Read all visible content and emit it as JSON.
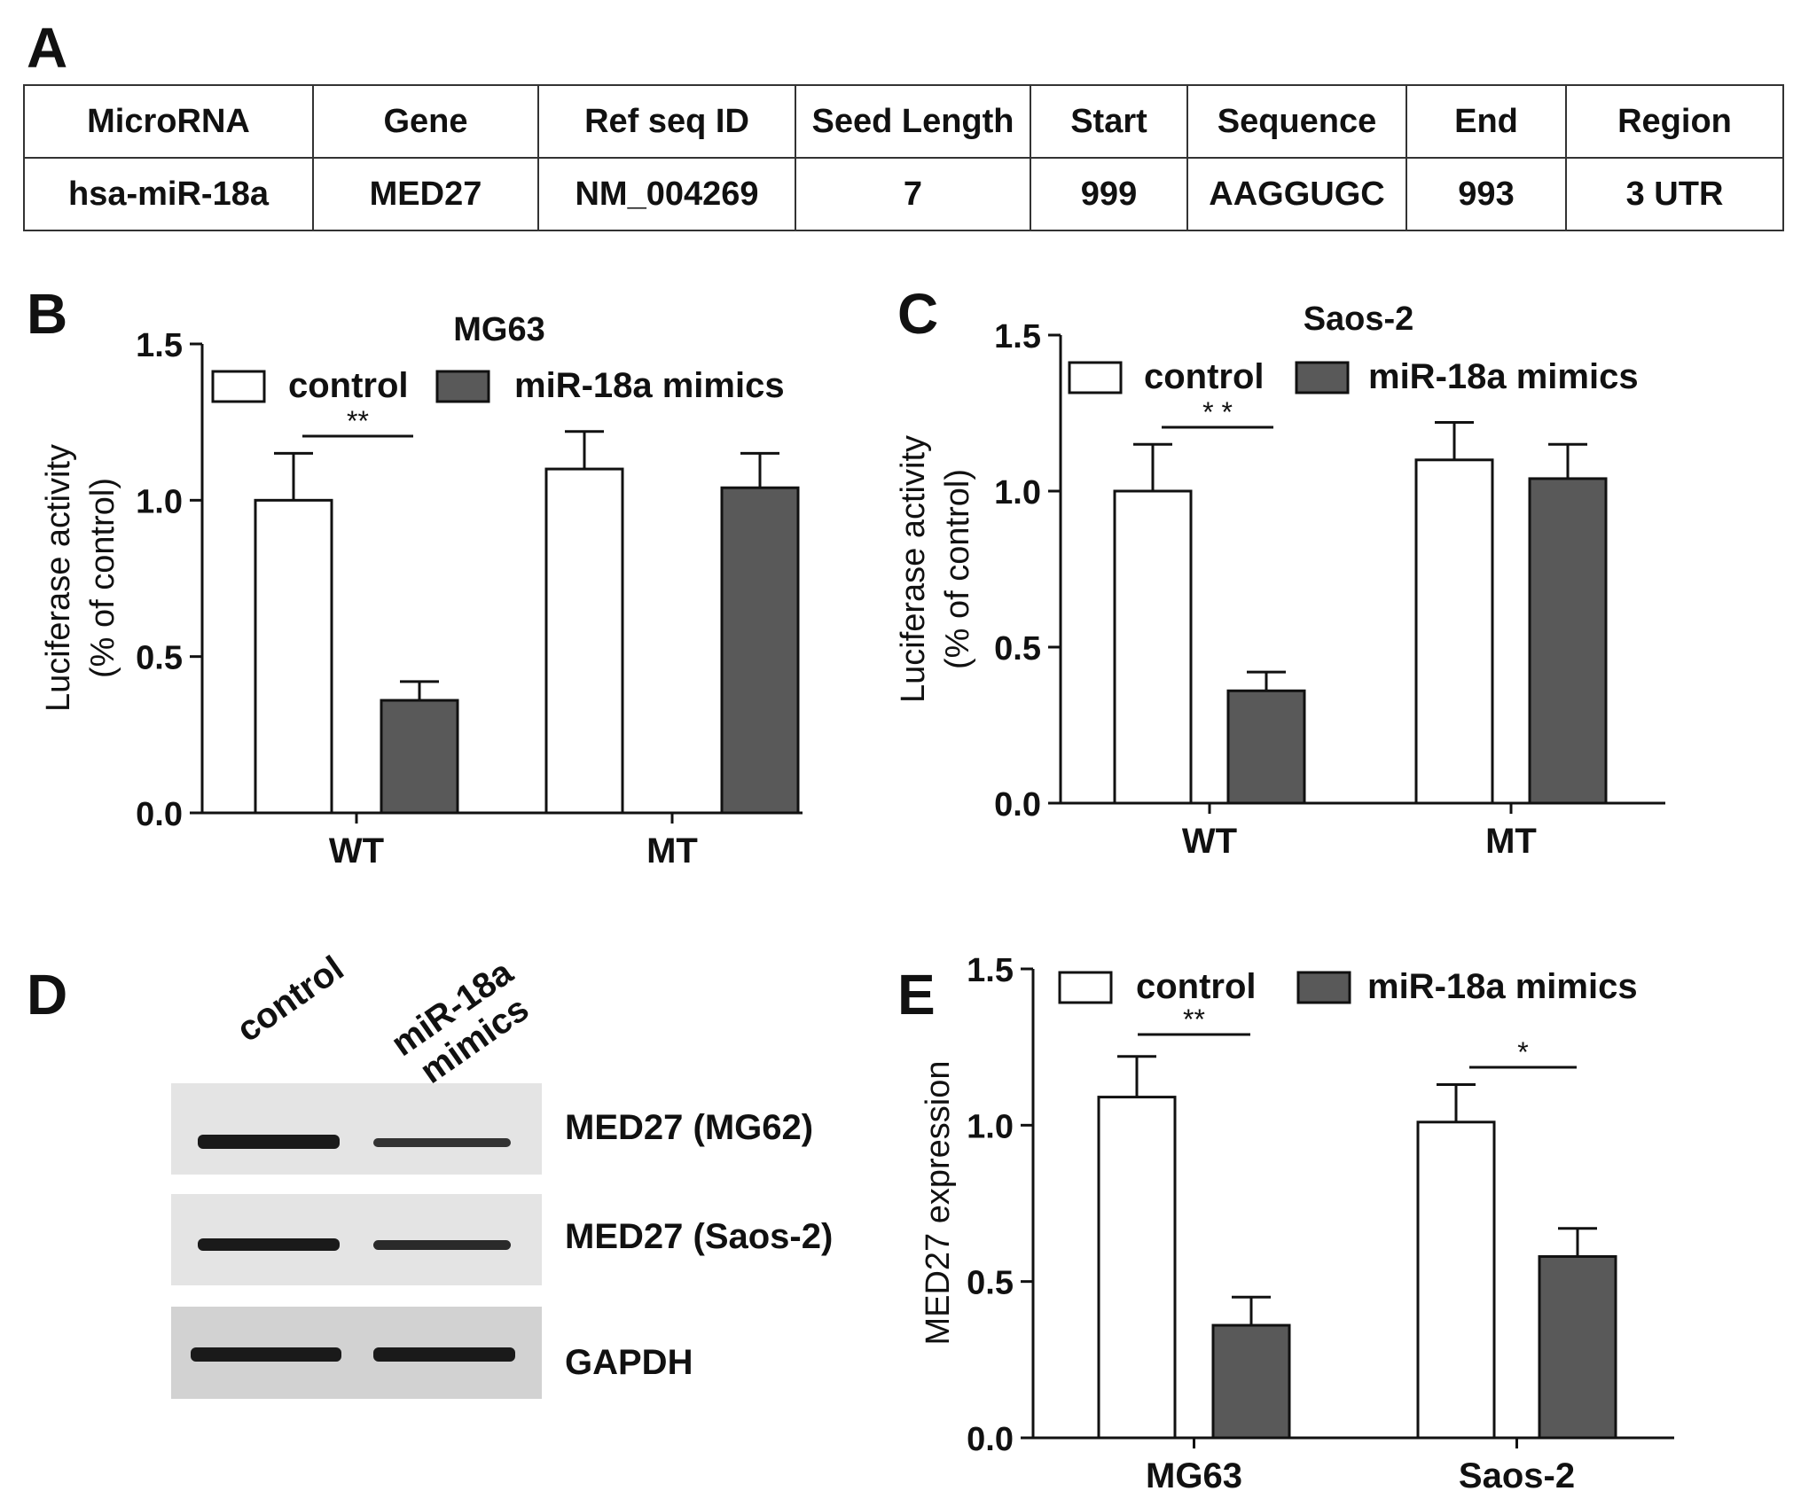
{
  "panels": {
    "a": "A",
    "b": "B",
    "c": "C",
    "d": "D",
    "e": "E"
  },
  "table": {
    "headers": [
      "MicroRNA",
      "Gene",
      "Ref seq ID",
      "Seed Length",
      "Start",
      "Sequence",
      "End",
      "Region"
    ],
    "row": [
      "hsa-miR-18a",
      "MED27",
      "NM_004269",
      "7",
      "999",
      "AAGGUGC",
      "993",
      "3 UTR"
    ]
  },
  "western_blot": {
    "lanes": [
      "control",
      "miR-18a mimics"
    ],
    "rows": [
      "MED27 (MG62)",
      "MED27 (Saos-2)",
      "GAPDH"
    ]
  },
  "colors": {
    "control_fill": "#ffffff",
    "mimics_fill": "#595959",
    "axis": "#111111"
  },
  "chart_data": [
    {
      "type": "bar",
      "panel": "B",
      "title": "MG63",
      "ylabel": [
        "Luciferase activity",
        "(% of control)"
      ],
      "categories": [
        "WT",
        "MT"
      ],
      "series": [
        {
          "name": "control",
          "values": [
            1.0,
            1.1
          ],
          "errors": [
            0.15,
            0.12
          ]
        },
        {
          "name": "miR-18a mimics",
          "values": [
            0.36,
            1.04
          ],
          "errors": [
            0.06,
            0.11
          ]
        }
      ],
      "ylim": [
        0,
        1.5
      ],
      "yticks": [
        "0.0",
        "0.5",
        "1.0",
        "1.5"
      ],
      "significance": [
        {
          "category": "WT",
          "label": "**"
        }
      ],
      "legend": "top"
    },
    {
      "type": "bar",
      "panel": "C",
      "title": "Saos-2",
      "ylabel": [
        "Luciferase activity",
        "(% of control)"
      ],
      "categories": [
        "WT",
        "MT"
      ],
      "series": [
        {
          "name": "control",
          "values": [
            1.0,
            1.1
          ],
          "errors": [
            0.15,
            0.12
          ]
        },
        {
          "name": "miR-18a mimics",
          "values": [
            0.36,
            1.04
          ],
          "errors": [
            0.06,
            0.11
          ]
        }
      ],
      "ylim": [
        0,
        1.5
      ],
      "yticks": [
        "0.0",
        "0.5",
        "1.0",
        "1.5"
      ],
      "significance": [
        {
          "category": "WT",
          "label": "* *"
        }
      ],
      "legend": "top"
    },
    {
      "type": "bar",
      "panel": "E",
      "title": "",
      "ylabel": [
        "MED27 expression"
      ],
      "categories": [
        "MG63",
        "Saos-2"
      ],
      "series": [
        {
          "name": "control",
          "values": [
            1.09,
            1.01
          ],
          "errors": [
            0.13,
            0.12
          ]
        },
        {
          "name": "miR-18a mimics",
          "values": [
            0.36,
            0.58
          ],
          "errors": [
            0.09,
            0.09
          ]
        }
      ],
      "ylim": [
        0,
        1.5
      ],
      "yticks": [
        "0.0",
        "0.5",
        "1.0",
        "1.5"
      ],
      "significance": [
        {
          "category": "MG63",
          "label": "**"
        },
        {
          "category": "Saos-2",
          "label": "*"
        }
      ],
      "legend": "top"
    }
  ]
}
